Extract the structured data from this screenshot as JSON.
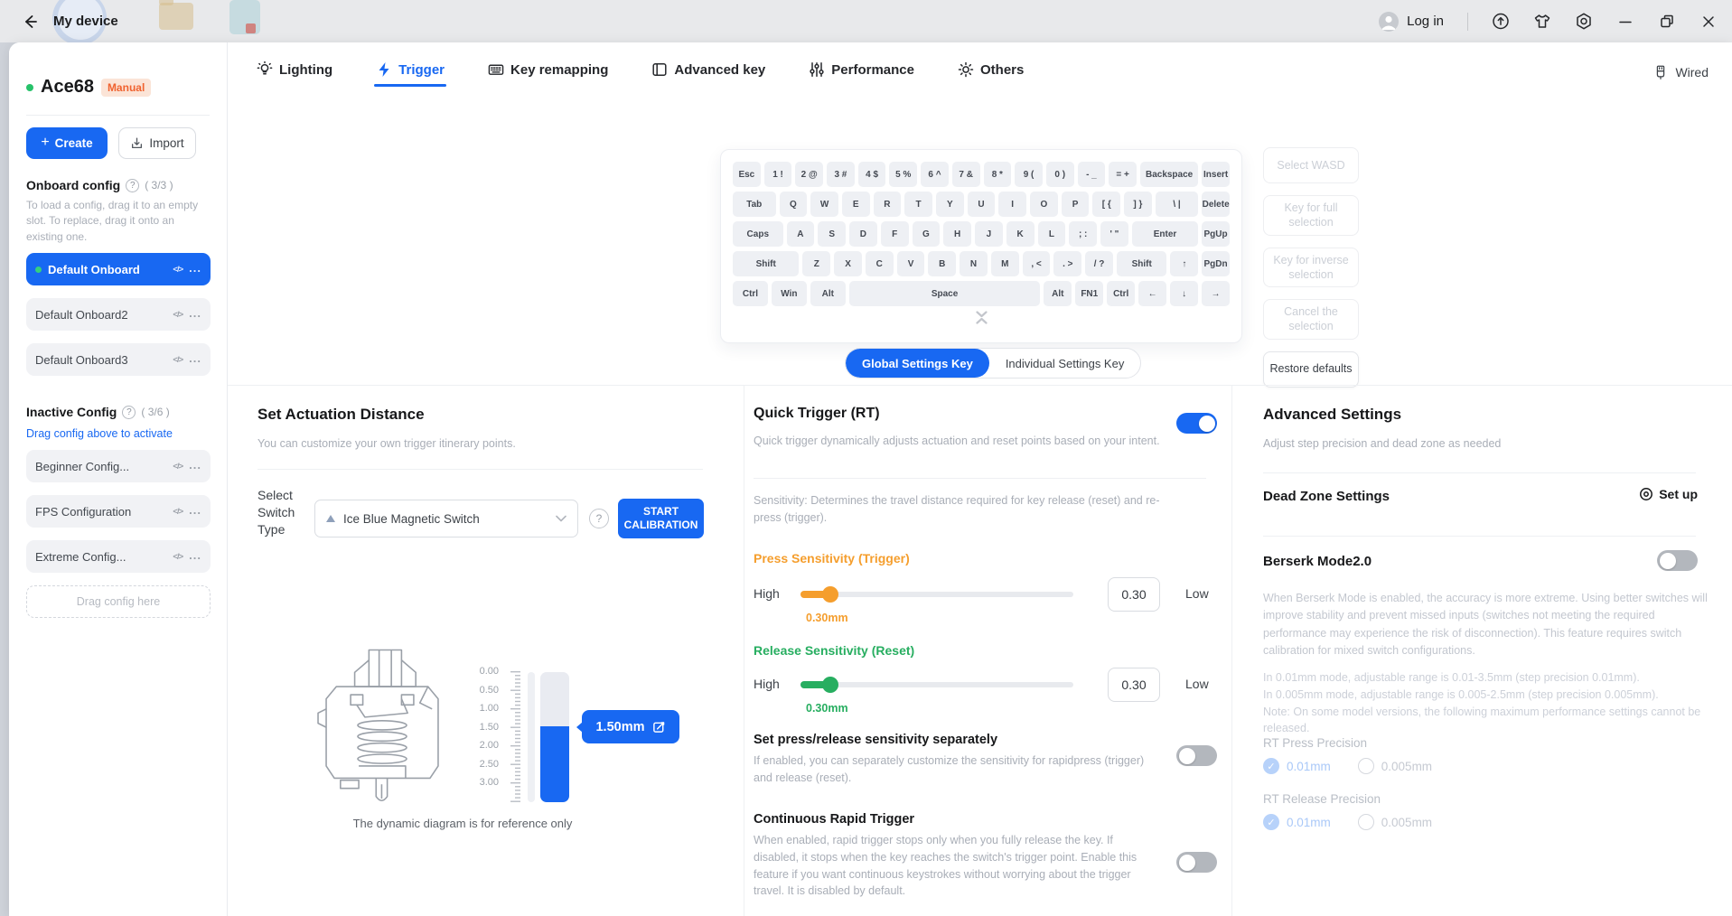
{
  "colors": {
    "accent": "#1868F2",
    "orange": "#F59E2D",
    "green": "#27AE60"
  },
  "titlebar": {
    "title": "My device",
    "login_label": "Log in"
  },
  "topbar": {
    "wired_label": "Wired"
  },
  "nav_tabs": [
    {
      "id": "lighting",
      "label": "Lighting",
      "icon": "lightbulb-icon",
      "active": false
    },
    {
      "id": "trigger",
      "label": "Trigger",
      "icon": "lightning-icon",
      "active": true
    },
    {
      "id": "key-remapping",
      "label": "Key remapping",
      "icon": "keyboard-icon",
      "active": false
    },
    {
      "id": "advanced-key",
      "label": "Advanced key",
      "icon": "book-icon",
      "active": false
    },
    {
      "id": "performance",
      "label": "Performance",
      "icon": "sliders-icon",
      "active": false
    },
    {
      "id": "others",
      "label": "Others",
      "icon": "gear-icon",
      "active": false
    }
  ],
  "sidebar": {
    "device_name": "Ace68",
    "device_badge": "Manual",
    "create_label": "Create",
    "import_label": "Import",
    "onboard_heading": "Onboard config",
    "onboard_count": "( 3/3 )",
    "onboard_help": "To load a config, drag it to an empty slot. To replace, drag it onto an existing one.",
    "onboard_items": [
      {
        "label": "Default Onboard",
        "active": true
      },
      {
        "label": "Default Onboard2",
        "active": false
      },
      {
        "label": "Default Onboard3",
        "active": false
      }
    ],
    "inactive_heading": "Inactive Config",
    "inactive_count": "( 3/6 )",
    "inactive_link": "Drag config above to activate",
    "inactive_items": [
      {
        "label": "Beginner Config..."
      },
      {
        "label": "FPS Configuration"
      },
      {
        "label": "Extreme Config..."
      }
    ],
    "empty_slot_label": "Drag config here"
  },
  "keyboard": {
    "rows": [
      [
        {
          "l": "Esc",
          "u": 1
        },
        {
          "l": "1 !",
          "u": 1
        },
        {
          "l": "2 @",
          "u": 1
        },
        {
          "l": "3 #",
          "u": 1
        },
        {
          "l": "4 $",
          "u": 1
        },
        {
          "l": "5 %",
          "u": 1
        },
        {
          "l": "6 ^",
          "u": 1
        },
        {
          "l": "7 &",
          "u": 1
        },
        {
          "l": "8 *",
          "u": 1
        },
        {
          "l": "9 (",
          "u": 1
        },
        {
          "l": "0 )",
          "u": 1
        },
        {
          "l": "- _",
          "u": 1
        },
        {
          "l": "= +",
          "u": 1
        },
        {
          "l": "Backspace",
          "u": 2
        },
        {
          "l": "Insert",
          "u": 1
        }
      ],
      [
        {
          "l": "Tab",
          "u": 1.5
        },
        {
          "l": "Q",
          "u": 1
        },
        {
          "l": "W",
          "u": 1
        },
        {
          "l": "E",
          "u": 1
        },
        {
          "l": "R",
          "u": 1
        },
        {
          "l": "T",
          "u": 1
        },
        {
          "l": "Y",
          "u": 1
        },
        {
          "l": "U",
          "u": 1
        },
        {
          "l": "I",
          "u": 1
        },
        {
          "l": "O",
          "u": 1
        },
        {
          "l": "P",
          "u": 1
        },
        {
          "l": "[ {",
          "u": 1
        },
        {
          "l": "] }",
          "u": 1
        },
        {
          "l": "\\ |",
          "u": 1.5
        },
        {
          "l": "Delete",
          "u": 1
        }
      ],
      [
        {
          "l": "Caps",
          "u": 1.75
        },
        {
          "l": "A",
          "u": 1
        },
        {
          "l": "S",
          "u": 1
        },
        {
          "l": "D",
          "u": 1
        },
        {
          "l": "F",
          "u": 1
        },
        {
          "l": "G",
          "u": 1
        },
        {
          "l": "H",
          "u": 1
        },
        {
          "l": "J",
          "u": 1
        },
        {
          "l": "K",
          "u": 1
        },
        {
          "l": "L",
          "u": 1
        },
        {
          "l": "; :",
          "u": 1
        },
        {
          "l": "' \"",
          "u": 1
        },
        {
          "l": "Enter",
          "u": 2.25
        },
        {
          "l": "PgUp",
          "u": 1
        }
      ],
      [
        {
          "l": "Shift",
          "u": 2.25
        },
        {
          "l": "Z",
          "u": 1
        },
        {
          "l": "X",
          "u": 1
        },
        {
          "l": "C",
          "u": 1
        },
        {
          "l": "V",
          "u": 1
        },
        {
          "l": "B",
          "u": 1
        },
        {
          "l": "N",
          "u": 1
        },
        {
          "l": "M",
          "u": 1
        },
        {
          "l": ", <",
          "u": 1
        },
        {
          "l": ". >",
          "u": 1
        },
        {
          "l": "/ ?",
          "u": 1
        },
        {
          "l": "Shift",
          "u": 1.75
        },
        {
          "l": "↑",
          "u": 1
        },
        {
          "l": "PgDn",
          "u": 1
        }
      ],
      [
        {
          "l": "Ctrl",
          "u": 1.25
        },
        {
          "l": "Win",
          "u": 1.25
        },
        {
          "l": "Alt",
          "u": 1.25
        },
        {
          "l": "Space",
          "u": 6.25
        },
        {
          "l": "Alt",
          "u": 1
        },
        {
          "l": "FN1",
          "u": 1
        },
        {
          "l": "Ctrl",
          "u": 1
        },
        {
          "l": "←",
          "u": 1
        },
        {
          "l": "↓",
          "u": 1
        },
        {
          "l": "→",
          "u": 1
        }
      ]
    ]
  },
  "selection_panel": {
    "buttons": [
      {
        "label": "Select WASD",
        "enabled": false
      },
      {
        "label": "Key for full selection",
        "enabled": false
      },
      {
        "label": "Key for inverse selection",
        "enabled": false
      },
      {
        "label": "Cancel the selection",
        "enabled": false
      },
      {
        "label": "Restore defaults",
        "enabled": true
      }
    ]
  },
  "settings_key_tabs": {
    "global": "Global Settings Key",
    "individual": "Individual Settings Key"
  },
  "actuation": {
    "title": "Set Actuation Distance",
    "subtitle": "You can customize your own trigger itinerary points.",
    "select_label": "Select Switch Type",
    "switch_value": "Ice Blue Magnetic Switch",
    "calibrate_line1": "START",
    "calibrate_line2": "CALIBRATION",
    "distance_value": "1.50mm",
    "ruler_ticks": [
      "0.00",
      "0.50",
      "1.00",
      "1.50",
      "2.00",
      "2.50",
      "3.00"
    ],
    "caption": "The dynamic diagram is for reference only"
  },
  "quick_trigger": {
    "title": "Quick Trigger (RT)",
    "subtitle": "Quick trigger dynamically adjusts actuation and reset points based on your intent.",
    "enabled": true,
    "sensitivity_note": "Sensitivity: Determines the travel distance required for key release (reset) and re-press (trigger).",
    "press": {
      "heading": "Press Sensitivity (Trigger)",
      "high": "High",
      "low": "Low",
      "value": "0.30",
      "value_mm": "0.30mm"
    },
    "release": {
      "heading": "Release Sensitivity (Reset)",
      "high": "High",
      "low": "Low",
      "value": "0.30",
      "value_mm": "0.30mm"
    },
    "separate": {
      "title": "Set press/release sensitivity separately",
      "desc": "If enabled, you can separately customize the sensitivity for rapidpress (trigger) and release (reset).",
      "enabled": false
    },
    "continuous": {
      "title": "Continuous Rapid Trigger",
      "desc": "When enabled, rapid trigger stops only when you fully release the key. If disabled, it stops when the key reaches the switch's trigger point. Enable this feature if you want continuous keystrokes without worrying about the trigger travel. It is disabled by default.",
      "enabled": false
    }
  },
  "advanced": {
    "title": "Advanced Settings",
    "subtitle": "Adjust step precision and dead zone as needed",
    "deadzone_label": "Dead Zone Settings",
    "setup_label": "Set up",
    "berserk_title": "Berserk Mode2.0",
    "berserk_enabled": false,
    "berserk_desc": "When Berserk Mode is enabled, the accuracy is more extreme. Using better switches will improve stability and prevent missed inputs (switches not meeting the required performance may experience the risk of disconnection). This feature requires switch calibration for mixed switch configurations.",
    "precision_note_lines": [
      "In 0.01mm mode, adjustable range is 0.01-3.5mm (step precision 0.01mm).",
      "In 0.005mm mode, adjustable range is 0.005-2.5mm (step precision 0.005mm).",
      "Note: On some model versions, the following maximum performance settings cannot be released."
    ],
    "rt_press": {
      "label": "RT Press Precision",
      "options": [
        {
          "label": "0.01mm",
          "checked": true
        },
        {
          "label": "0.005mm",
          "checked": false
        }
      ]
    },
    "rt_release": {
      "label": "RT Release Precision",
      "options": [
        {
          "label": "0.01mm",
          "checked": true
        },
        {
          "label": "0.005mm",
          "checked": false
        }
      ]
    }
  }
}
